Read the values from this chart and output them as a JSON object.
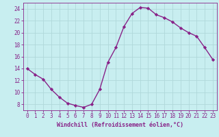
{
  "x": [
    0,
    1,
    2,
    3,
    4,
    5,
    6,
    7,
    8,
    9,
    10,
    11,
    12,
    13,
    14,
    15,
    16,
    17,
    18,
    19,
    20,
    21,
    22,
    23
  ],
  "y": [
    14,
    13,
    12.2,
    10.5,
    9.2,
    8.2,
    7.8,
    7.5,
    8.0,
    10.5,
    15.0,
    17.5,
    21.0,
    23.2,
    24.2,
    24.1,
    23.0,
    22.5,
    21.8,
    20.8,
    20.0,
    19.4,
    17.5,
    15.5
  ],
  "line_color": "#882288",
  "marker": "D",
  "marker_size": 2.2,
  "bg_color": "#c8eef0",
  "grid_color": "#b0d8da",
  "xlabel": "Windchill (Refroidissement éolien,°C)",
  "xlabel_color": "#882288",
  "tick_color": "#882288",
  "spine_color": "#882288",
  "xlim": [
    -0.5,
    23.5
  ],
  "ylim": [
    7,
    25
  ],
  "yticks": [
    8,
    10,
    12,
    14,
    16,
    18,
    20,
    22,
    24
  ],
  "xticks": [
    0,
    1,
    2,
    3,
    4,
    5,
    6,
    7,
    8,
    9,
    10,
    11,
    12,
    13,
    14,
    15,
    16,
    17,
    18,
    19,
    20,
    21,
    22,
    23
  ],
  "tick_fontsize": 5.5,
  "xlabel_fontsize": 6.0
}
